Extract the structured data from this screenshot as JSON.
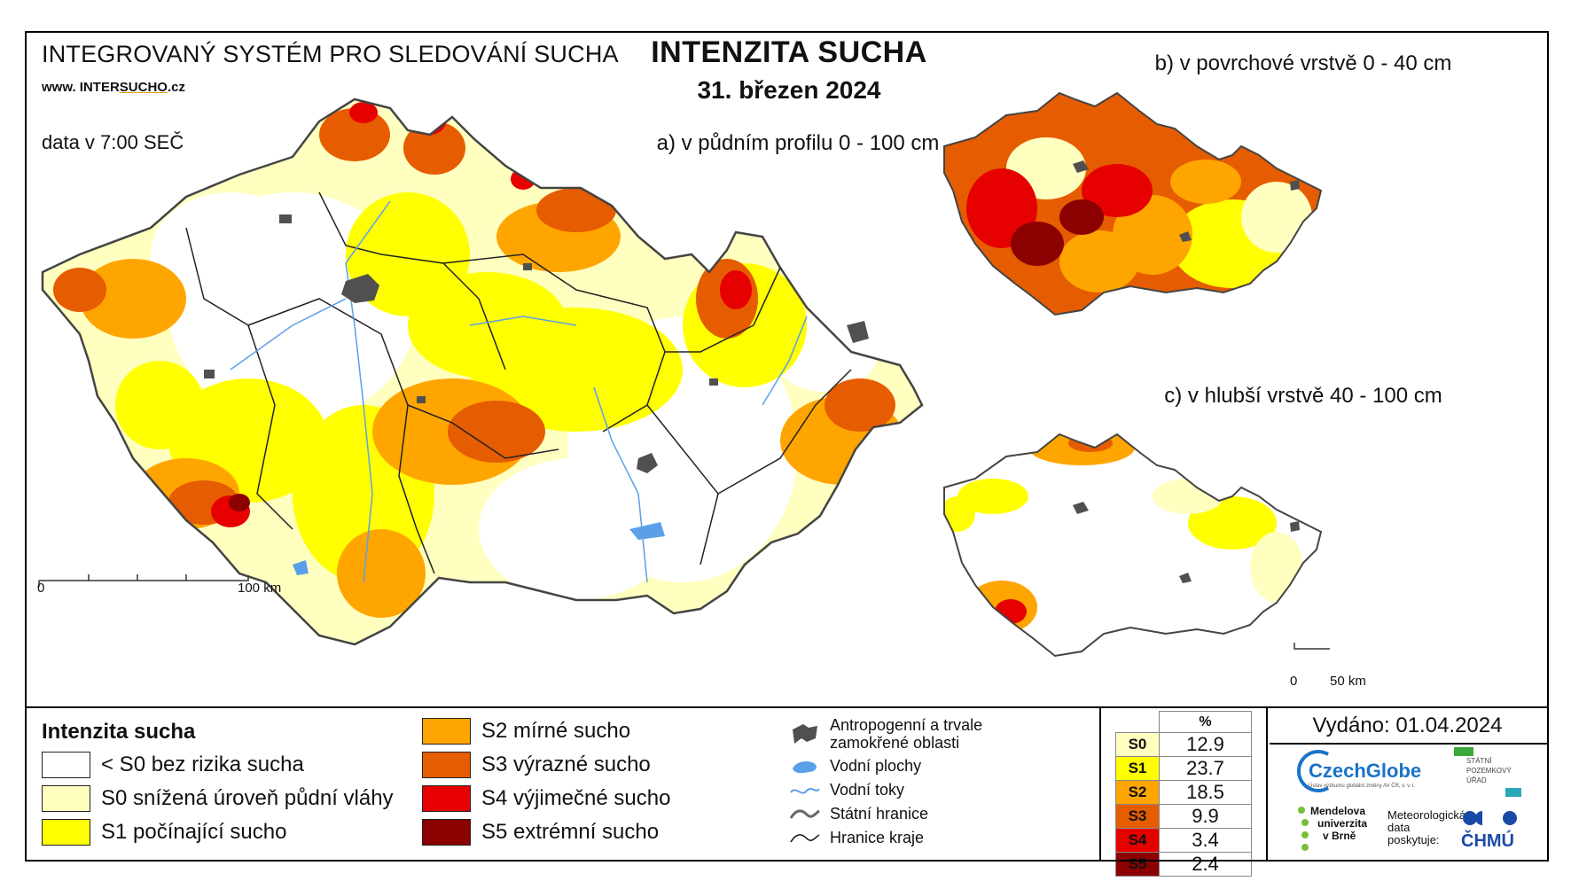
{
  "header": {
    "system_title": "INTEGROVANÝ SYSTÉM PRO SLEDOVÁNÍ SUCHA",
    "website_prefix": "www. INTER",
    "website_mid": "SUCHO",
    "website_suffix": ".cz",
    "data_time": "data v 7:00 SEČ",
    "title": "INTENZITA SUCHA",
    "date": "31. březen 2024"
  },
  "maps": {
    "a_label": "a) v půdním profilu 0 - 100 cm",
    "b_label": "b) v povrchové vrstvě 0 - 40 cm",
    "c_label": "c) v hlubší vrstvě 40 - 100 cm",
    "scale_main": {
      "start": "0",
      "end": "100 km"
    },
    "scale_small": {
      "start": "0",
      "end": "50 km"
    }
  },
  "legend": {
    "title": "Intenzita sucha",
    "classes": [
      {
        "label": "< S0 bez rizika sucha",
        "color": "#ffffff"
      },
      {
        "label": "S0 snížená úroveň půdní vláhy",
        "color": "#ffffc0"
      },
      {
        "label": "S1 počínající sucho",
        "color": "#ffff00"
      },
      {
        "label": "S2 mírné sucho",
        "color": "#ffa500"
      },
      {
        "label": "S3 výrazné sucho",
        "color": "#e65c00"
      },
      {
        "label": "S4 výjimečné sucho",
        "color": "#e60000"
      },
      {
        "label": "S5 extrémní sucho",
        "color": "#8b0000"
      }
    ]
  },
  "overlays": {
    "urban_line1": "Antropogenní a trvale",
    "urban_line2": "zamokřené oblasti",
    "water": "Vodní plochy",
    "rivers": "Vodní toky",
    "state_border": "Státní hranice",
    "region_border": "Hranice kraje"
  },
  "stats": {
    "header": "%",
    "rows": [
      {
        "cls": "S0",
        "value": "12.9",
        "color": "#ffffc0"
      },
      {
        "cls": "S1",
        "value": "23.7",
        "color": "#ffff00"
      },
      {
        "cls": "S2",
        "value": "18.5",
        "color": "#ffa500"
      },
      {
        "cls": "S3",
        "value": "9.9",
        "color": "#e65c00"
      },
      {
        "cls": "S4",
        "value": "3.4",
        "color": "#e60000"
      },
      {
        "cls": "S5",
        "value": "2.4",
        "color": "#8b0000"
      }
    ]
  },
  "footer": {
    "issued": "Vydáno: 01.04.2024",
    "czechglobe": "CzechGlobe",
    "czechglobe_sub": "Ústav výzkumu globální změny AV ČR, v. v. i.",
    "spu_line1": "STÁTNÍ",
    "spu_line2": "POZEMKOVÝ",
    "spu_line3": "ÚŘAD",
    "mendel_line1": "Mendelova",
    "mendel_line2": "univerzita",
    "mendel_line3": "v Brně",
    "meteo_line1": "Meteorologická",
    "meteo_line2": "data",
    "meteo_line3": "poskytuje:",
    "chmu": "ČHMÚ"
  }
}
